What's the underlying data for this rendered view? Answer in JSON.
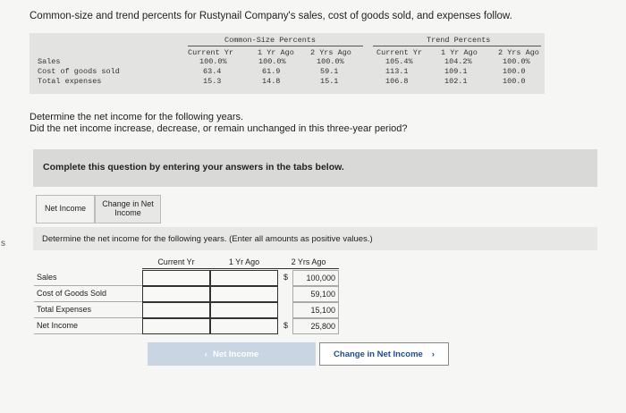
{
  "intro": "Common-size and trend percents for Rustynail Company's sales, cost of goods sold, and expenses follow.",
  "margin_char": "s",
  "given": {
    "group_common": "Common-Size Percents",
    "group_trend": "Trend Percents",
    "col_headers": [
      "Current Yr",
      "1 Yr Ago",
      "2 Yrs Ago",
      "Current Yr",
      "1 Yr Ago",
      "2 Yrs Ago"
    ],
    "rows": [
      {
        "label": "Sales",
        "values": [
          "100.0%",
          "100.0%",
          "100.0%",
          "105.4%",
          "104.2%",
          "100.0%"
        ]
      },
      {
        "label": "Cost of goods sold",
        "values": [
          "63.4",
          "61.9",
          "59.1",
          "113.1",
          "109.1",
          "100.0"
        ]
      },
      {
        "label": "Total expenses",
        "values": [
          "15.3",
          "14.8",
          "15.1",
          "106.8",
          "102.1",
          "100.0"
        ]
      }
    ]
  },
  "question_line1": "Determine the net income for the following years.",
  "question_line2": "Did the net income increase, decrease, or remain unchanged in this three-year period?",
  "complete_prompt": "Complete this question by entering your answers in the tabs below.",
  "tabs": [
    "Net Income",
    "Change in Net Income"
  ],
  "instruction": "Determine the net income for the following years. (Enter all amounts as positive values.)",
  "answer_table": {
    "headers": [
      "Current Yr",
      "1 Yr Ago",
      "2 Yrs Ago"
    ],
    "rows": [
      {
        "label": "Sales",
        "dollar": "$",
        "value": "100,000"
      },
      {
        "label": "Cost of Goods Sold",
        "dollar": "",
        "value": "59,100"
      },
      {
        "label": "Total Expenses",
        "dollar": "",
        "value": "15,100"
      },
      {
        "label": "Net Income",
        "dollar": "$",
        "value": "25,800"
      }
    ]
  },
  "buttons": {
    "prev": "Net Income",
    "prev_icon": "chevron-left-icon",
    "next": "Change in Net Income",
    "next_icon": "chevron-right-icon"
  }
}
